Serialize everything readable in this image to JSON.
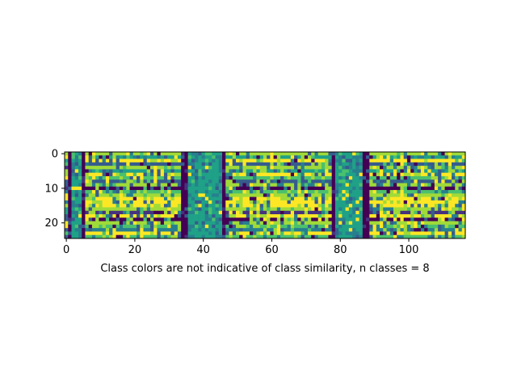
{
  "chart_data": {
    "type": "heatmap",
    "title": "",
    "xlabel": "Class colors are not indicative of class similarity, n classes = 8",
    "ylabel": "",
    "n_rows": 25,
    "n_cols": 117,
    "xlim": [
      -0.5,
      116.5
    ],
    "ylim": [
      24.5,
      -0.5
    ],
    "x_ticks": [
      0,
      20,
      40,
      60,
      80,
      100
    ],
    "x_tick_labels": [
      "0",
      "20",
      "40",
      "60",
      "80",
      "100"
    ],
    "y_ticks": [
      0,
      10,
      20
    ],
    "y_tick_labels": [
      "0",
      "10",
      "20"
    ],
    "grid": false,
    "legend": "none",
    "n_classes": 8,
    "palette": [
      "#440154",
      "#46327e",
      "#365c8d",
      "#277f8e",
      "#1fa187",
      "#4ac16d",
      "#a0da39",
      "#fde725"
    ],
    "column_segments": [
      {
        "cols": [
          0,
          0
        ],
        "kind": "mixed"
      },
      {
        "cols": [
          1,
          1
        ],
        "kind": "dark"
      },
      {
        "cols": [
          2,
          4
        ],
        "kind": "teal"
      },
      {
        "cols": [
          5,
          5
        ],
        "kind": "dark"
      },
      {
        "cols": [
          6,
          33
        ],
        "kind": "striped"
      },
      {
        "cols": [
          34,
          35
        ],
        "kind": "dark"
      },
      {
        "cols": [
          36,
          45
        ],
        "kind": "teal"
      },
      {
        "cols": [
          46,
          46
        ],
        "kind": "dark"
      },
      {
        "cols": [
          47,
          77
        ],
        "kind": "striped"
      },
      {
        "cols": [
          78,
          78
        ],
        "kind": "dark"
      },
      {
        "cols": [
          79,
          86
        ],
        "kind": "teal"
      },
      {
        "cols": [
          87,
          88
        ],
        "kind": "dark"
      },
      {
        "cols": [
          89,
          116
        ],
        "kind": "striped"
      }
    ],
    "row_patterns": [
      6,
      4,
      7,
      2,
      6,
      4,
      7,
      5,
      2,
      6,
      0,
      5,
      6,
      7,
      7,
      7,
      6,
      1,
      7,
      0,
      6,
      5,
      3,
      7,
      5
    ]
  }
}
